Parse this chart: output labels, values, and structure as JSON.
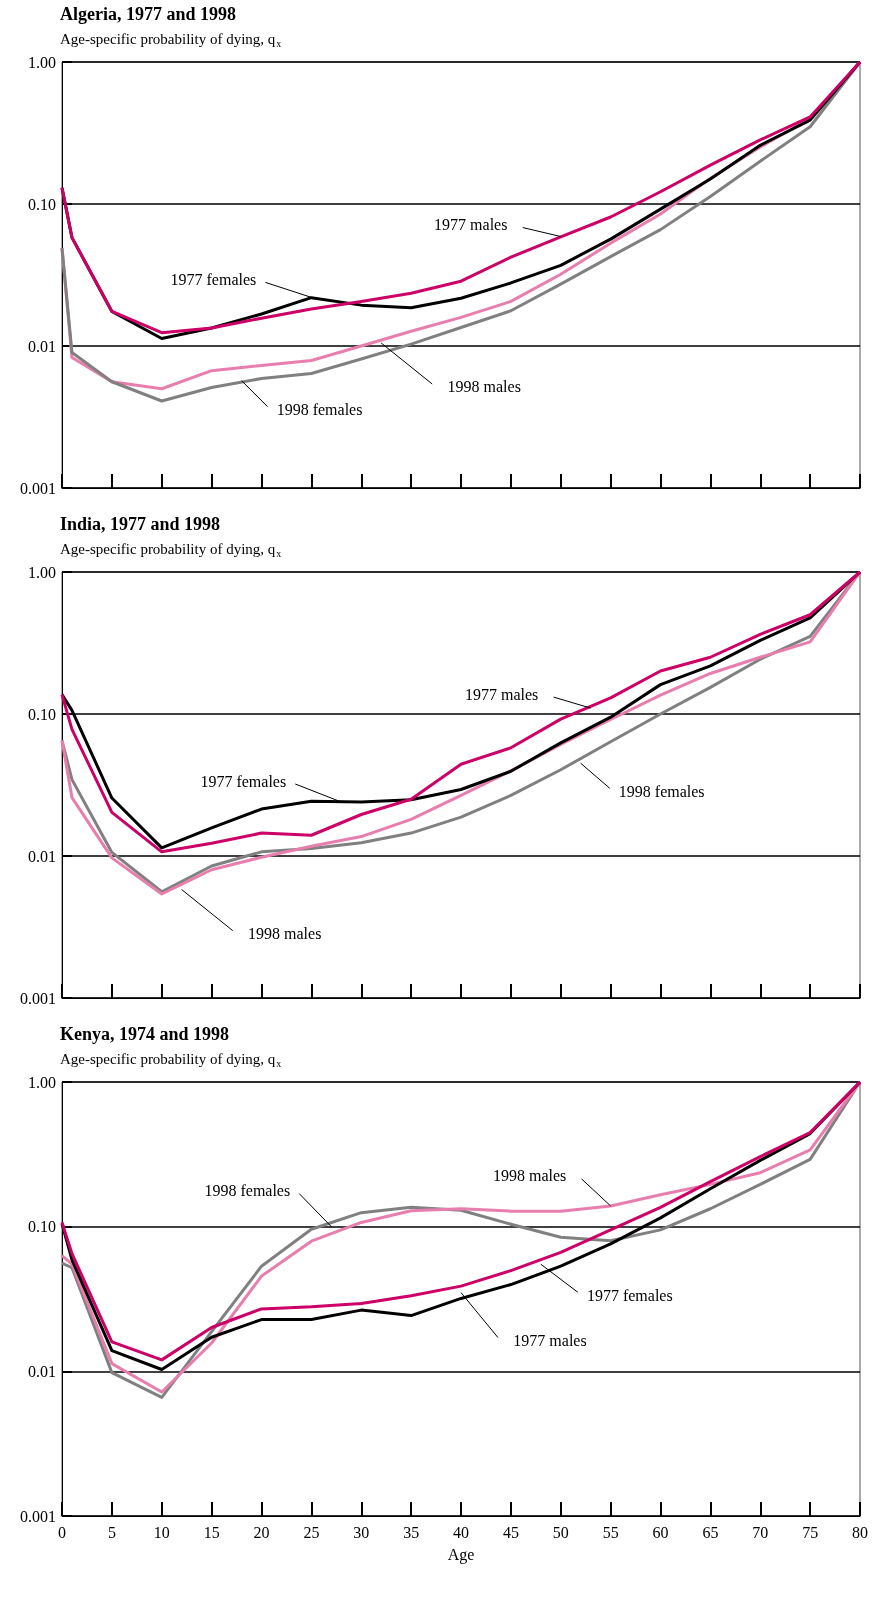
{
  "chart_data": [
    {
      "type": "line",
      "title": "Algeria, 1977 and 1998",
      "subtitle": "Age-specific probability of dying, q$_{x}$",
      "x": [
        0,
        1,
        5,
        10,
        15,
        20,
        25,
        30,
        35,
        40,
        45,
        50,
        55,
        60,
        65,
        70,
        75,
        80
      ],
      "xlim": [
        0,
        80
      ],
      "xticks": [
        0,
        5,
        10,
        15,
        20,
        25,
        30,
        35,
        40,
        45,
        50,
        55,
        60,
        65,
        70,
        75,
        80
      ],
      "ylim": [
        0.001,
        1
      ],
      "yticks": [
        {
          "value": 0.001,
          "label": "0.001"
        },
        {
          "value": 0.01,
          "label": "0.01"
        },
        {
          "value": 0.1,
          "label": "0.10"
        },
        {
          "value": 1,
          "label": "1.00"
        }
      ],
      "log": "y",
      "grid": "y",
      "marker": "none",
      "tick_labels": "y",
      "series": [
        {
          "color": "#e87ead",
          "values": [
            0.049,
            0.0083,
            0.0056,
            0.005,
            0.0067,
            0.0073,
            0.0079,
            0.01,
            0.0127,
            0.0159,
            0.0206,
            0.032,
            0.053,
            0.085,
            0.152,
            0.252,
            0.4,
            1
          ]
        },
        {
          "color": "#808080",
          "values": [
            0.049,
            0.009,
            0.0056,
            0.0041,
            0.0051,
            0.0059,
            0.0064,
            0.0081,
            0.0103,
            0.0135,
            0.0177,
            0.0273,
            0.0426,
            0.066,
            0.113,
            0.2,
            0.35,
            1
          ]
        },
        {
          "color": "#000000",
          "values": [
            0.13,
            0.058,
            0.0175,
            0.0113,
            0.0134,
            0.0168,
            0.0219,
            0.0194,
            0.0186,
            0.0217,
            0.0278,
            0.037,
            0.0566,
            0.092,
            0.15,
            0.259,
            0.39,
            1
          ]
        },
        {
          "color": "#cc0066",
          "values": [
            0.13,
            0.058,
            0.0175,
            0.0124,
            0.0134,
            0.0157,
            0.0182,
            0.0206,
            0.0235,
            0.0286,
            0.0422,
            0.0587,
            0.081,
            0.122,
            0.188,
            0.283,
            0.41,
            1
          ]
        }
      ],
      "annotations": [
        {
          "text": "1977 males",
          "x": 50,
          "y": 0.059
        },
        {
          "text": "1977 females",
          "x": 25,
          "y": 0.022
        },
        {
          "text": "1998 males",
          "x": 32,
          "y": 0.0105
        },
        {
          "text": "1998 females",
          "x": 18,
          "y": 0.0057
        }
      ]
    },
    {
      "type": "line",
      "title": "India, 1977 and 1998",
      "subtitle": "Age-specific probability of dying, q$_{x}$",
      "x": [
        0,
        1,
        5,
        10,
        15,
        20,
        25,
        30,
        35,
        40,
        45,
        50,
        55,
        60,
        65,
        70,
        75,
        80
      ],
      "xlim": [
        0,
        80
      ],
      "xticks": [
        0,
        5,
        10,
        15,
        20,
        25,
        30,
        35,
        40,
        45,
        50,
        55,
        60,
        65,
        70,
        75,
        80
      ],
      "ylim": [
        0.001,
        1
      ],
      "yticks": [
        {
          "value": 0.001,
          "label": "0.001"
        },
        {
          "value": 0.01,
          "label": "0.01"
        },
        {
          "value": 0.1,
          "label": "0.10"
        },
        {
          "value": 1,
          "label": "1.00"
        }
      ],
      "log": "y",
      "grid": "y",
      "marker": "none",
      "tick_labels": "y",
      "series": [
        {
          "color": "#808080",
          "values": [
            0.065,
            0.0345,
            0.0106,
            0.0056,
            0.0085,
            0.0107,
            0.0113,
            0.0124,
            0.0145,
            0.0188,
            0.0267,
            0.0405,
            0.0637,
            0.1,
            0.154,
            0.243,
            0.352,
            1
          ]
        },
        {
          "color": "#e87ead",
          "values": [
            0.065,
            0.0258,
            0.0097,
            0.0054,
            0.008,
            0.0098,
            0.0117,
            0.0137,
            0.0181,
            0.0267,
            0.0398,
            0.061,
            0.0915,
            0.136,
            0.193,
            0.251,
            0.322,
            1
          ]
        },
        {
          "color": "#000000",
          "values": [
            0.137,
            0.106,
            0.0256,
            0.0114,
            0.0158,
            0.0214,
            0.0243,
            0.024,
            0.0249,
            0.0294,
            0.0395,
            0.0626,
            0.095,
            0.161,
            0.218,
            0.33,
            0.475,
            1
          ]
        },
        {
          "color": "#cc0066",
          "values": [
            0.137,
            0.078,
            0.0203,
            0.0107,
            0.0123,
            0.0145,
            0.014,
            0.0196,
            0.0251,
            0.0443,
            0.0578,
            0.092,
            0.13,
            0.201,
            0.251,
            0.364,
            0.5,
            1
          ]
        }
      ],
      "annotations": [
        {
          "text": "1977 males",
          "x": 53,
          "y": 0.11
        },
        {
          "text": "1977 females",
          "x": 28,
          "y": 0.024
        },
        {
          "text": "1998 females",
          "x": 52,
          "y": 0.045
        },
        {
          "text": "1998 males",
          "x": 12,
          "y": 0.0058
        }
      ]
    },
    {
      "type": "line",
      "title": "Kenya, 1974 and 1998",
      "subtitle": "Age-specific probability of dying, q$_{x}$",
      "xlabel": "Age",
      "x": [
        0,
        1,
        5,
        10,
        15,
        20,
        25,
        30,
        35,
        40,
        45,
        50,
        55,
        60,
        65,
        70,
        75,
        80
      ],
      "xlim": [
        0,
        80
      ],
      "xticks": [
        0,
        5,
        10,
        15,
        20,
        25,
        30,
        35,
        40,
        45,
        50,
        55,
        60,
        65,
        70,
        75,
        80
      ],
      "ylim": [
        0.001,
        1
      ],
      "yticks": [
        {
          "value": 0.001,
          "label": "0.001"
        },
        {
          "value": 0.01,
          "label": "0.01"
        },
        {
          "value": 0.1,
          "label": "0.10"
        },
        {
          "value": 1,
          "label": "1.00"
        }
      ],
      "log": "y",
      "grid": "y",
      "marker": "none",
      "series": [
        {
          "color": "#808080",
          "values": [
            0.056,
            0.052,
            0.0098,
            0.0066,
            0.0188,
            0.0533,
            0.096,
            0.125,
            0.136,
            0.13,
            0.104,
            0.0845,
            0.08,
            0.095,
            0.133,
            0.196,
            0.292,
            1
          ]
        },
        {
          "color": "#e87ead",
          "values": [
            0.063,
            0.055,
            0.0113,
            0.0072,
            0.0157,
            0.0455,
            0.0794,
            0.107,
            0.129,
            0.133,
            0.128,
            0.128,
            0.139,
            0.166,
            0.196,
            0.236,
            0.34,
            1
          ]
        },
        {
          "color": "#000000",
          "values": [
            0.105,
            0.059,
            0.0139,
            0.0103,
            0.0172,
            0.0228,
            0.0228,
            0.0265,
            0.0243,
            0.0319,
            0.0398,
            0.0533,
            0.076,
            0.115,
            0.183,
            0.287,
            0.44,
            1
          ]
        },
        {
          "color": "#cc0066",
          "values": [
            0.107,
            0.065,
            0.016,
            0.012,
            0.0201,
            0.027,
            0.0279,
            0.0294,
            0.0333,
            0.0388,
            0.0497,
            0.0665,
            0.095,
            0.136,
            0.205,
            0.305,
            0.447,
            1
          ]
        }
      ],
      "annotations": [
        {
          "text": "1998 females",
          "x": 27,
          "y": 0.1
        },
        {
          "text": "1998 males",
          "x": 55,
          "y": 0.139
        },
        {
          "text": "1977 females",
          "x": 48,
          "y": 0.055
        },
        {
          "text": "1977 males",
          "x": 40,
          "y": 0.035
        }
      ]
    }
  ]
}
